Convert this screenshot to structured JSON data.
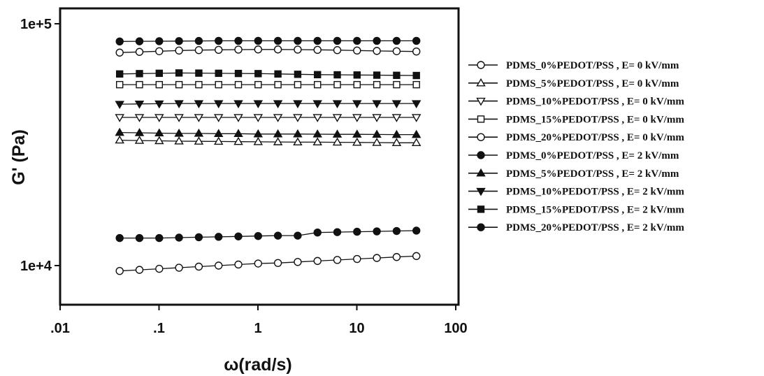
{
  "chart_data": {
    "type": "line",
    "xlabel": "ω(rad/s)",
    "ylabel": "G' (Pa)",
    "xscale": "log",
    "yscale": "log",
    "xlim": [
      0.01,
      100
    ],
    "ylim": [
      7000,
      130000
    ],
    "x_ticks": [
      {
        "value": 0.01,
        "label": ".01"
      },
      {
        "value": 0.1,
        "label": ".1"
      },
      {
        "value": 1,
        "label": "1"
      },
      {
        "value": 10,
        "label": "10"
      },
      {
        "value": 100,
        "label": "100"
      }
    ],
    "y_ticks": [
      {
        "value": 10000,
        "label": "1e+4"
      },
      {
        "value": 100000,
        "label": "1e+5"
      }
    ],
    "grid": false,
    "legend_position": "right",
    "x": [
      0.04,
      0.0634,
      0.1005,
      0.1593,
      0.2525,
      0.4002,
      0.6343,
      1.005,
      1.593,
      2.525,
      4.002,
      6.343,
      10.05,
      15.93,
      25.25,
      40.0
    ],
    "series": [
      {
        "name": "PDMS_0%PEDOT/PSS , E= 0 kV/mm",
        "marker": "circle-open",
        "values": [
          9500,
          9600,
          9700,
          9800,
          9900,
          10000,
          10100,
          10200,
          10250,
          10350,
          10450,
          10550,
          10650,
          10750,
          10850,
          10950
        ]
      },
      {
        "name": "PDMS_5%PEDOT/PSS , E= 0 kV/mm",
        "marker": "triangle-up-open",
        "values": [
          33000,
          32900,
          32800,
          32700,
          32650,
          32600,
          32550,
          32500,
          32450,
          32400,
          32400,
          32350,
          32300,
          32250,
          32200,
          32200
        ]
      },
      {
        "name": "PDMS_10%PEDOT/PSS , E= 0 kV/mm",
        "marker": "triangle-down-open",
        "values": [
          41000,
          41000,
          41000,
          41000,
          41000,
          41000,
          41000,
          41000,
          41000,
          41000,
          41000,
          41000,
          41000,
          41000,
          41000,
          41000
        ]
      },
      {
        "name": "PDMS_15%PEDOT/PSS , E= 0 kV/mm",
        "marker": "square-open",
        "values": [
          56000,
          56000,
          56000,
          56000,
          56000,
          56000,
          56000,
          56000,
          56000,
          56000,
          56000,
          56000,
          56000,
          56000,
          56000,
          56000
        ]
      },
      {
        "name": "PDMS_20%PEDOT/PSS , E= 0 kV/mm",
        "marker": "circle-open",
        "values": [
          76000,
          76500,
          77000,
          77500,
          77800,
          78000,
          78200,
          78300,
          78300,
          78200,
          78000,
          77800,
          77500,
          77200,
          77000,
          76800
        ]
      },
      {
        "name": "PDMS_0%PEDOT/PSS , E= 2 kV/mm",
        "marker": "circle-filled",
        "values": [
          13000,
          13000,
          13000,
          13050,
          13100,
          13150,
          13200,
          13250,
          13300,
          13300,
          13700,
          13750,
          13800,
          13850,
          13900,
          13950
        ]
      },
      {
        "name": "PDMS_5%PEDOT/PSS , E= 2 kV/mm",
        "marker": "triangle-up-filled",
        "values": [
          35500,
          35400,
          35300,
          35200,
          35200,
          35100,
          35100,
          35000,
          35000,
          35000,
          34950,
          34900,
          34900,
          34850,
          34800,
          34800
        ]
      },
      {
        "name": "PDMS_10%PEDOT/PSS , E= 2 kV/mm",
        "marker": "triangle-down-filled",
        "values": [
          46500,
          46600,
          46700,
          46800,
          46800,
          46800,
          46800,
          46800,
          46800,
          46800,
          46800,
          46800,
          46800,
          46800,
          46800,
          46800
        ]
      },
      {
        "name": "PDMS_15%PEDOT/PSS , E= 2 kV/mm",
        "marker": "square-filled",
        "values": [
          62000,
          62200,
          62400,
          62600,
          62500,
          62400,
          62300,
          62200,
          62000,
          61800,
          61600,
          61500,
          61400,
          61300,
          61200,
          61100
        ]
      },
      {
        "name": "PDMS_20%PEDOT/PSS , E= 2 kV/mm",
        "marker": "circle-filled",
        "values": [
          84500,
          84600,
          84700,
          84800,
          84900,
          85000,
          85000,
          85000,
          85000,
          85000,
          85000,
          85000,
          85000,
          85000,
          85000,
          85000
        ]
      }
    ]
  }
}
